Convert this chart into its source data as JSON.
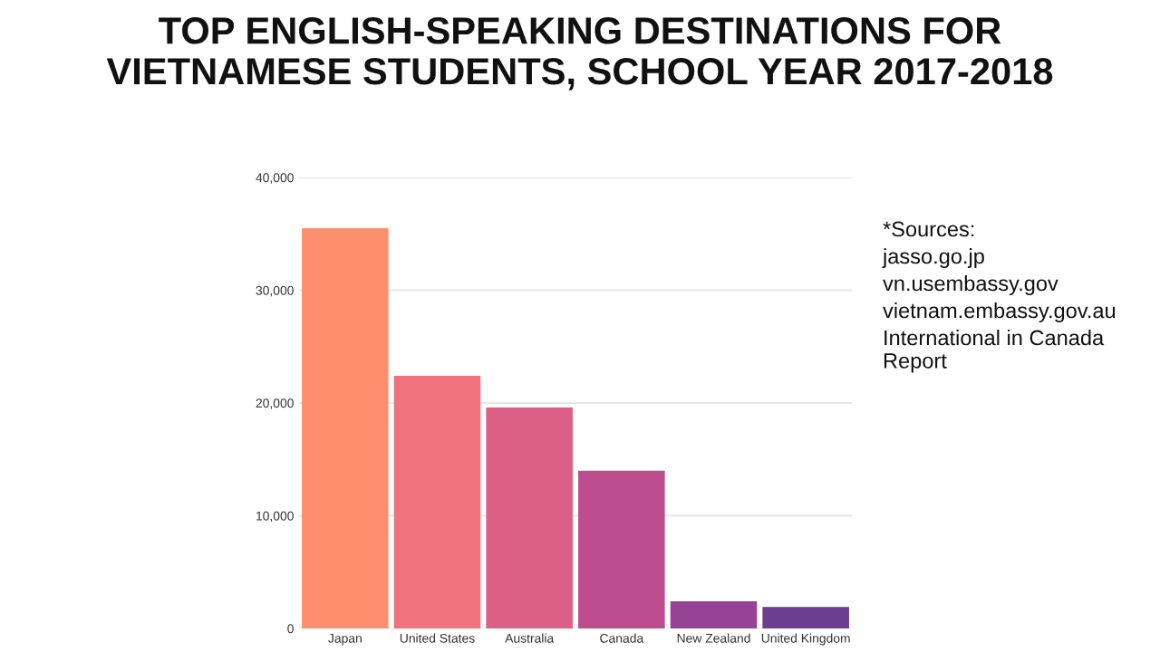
{
  "chart_data": {
    "type": "bar",
    "title": "TOP ENGLISH-SPEAKING DESTINATIONS FOR\nVIETNAMESE STUDENTS, SCHOOL YEAR 2017-2018",
    "categories": [
      "Japan",
      "United States",
      "Australia",
      "Canada",
      "New Zealand",
      "United Kingdom"
    ],
    "values": [
      35500,
      22400,
      19600,
      14000,
      2400,
      1900
    ],
    "colors": [
      "#fe8f6e",
      "#ef727c",
      "#dc5f85",
      "#bc4e8e",
      "#964396",
      "#6c3d90"
    ],
    "ylim": [
      0,
      40000
    ],
    "yticks": [
      0,
      {
        "value": 10000,
        "label": "10,000"
      },
      {
        "value": 20000,
        "label": "20,000"
      },
      {
        "value": 30000,
        "label": "30,000"
      },
      {
        "value": 40000,
        "label": "40,000"
      }
    ],
    "grid": "y",
    "annotations": [
      "*Sources:",
      "jasso.go.jp",
      "vn.usembassy.gov",
      "vietnam.embassy.gov.au",
      "International in Canada Report"
    ]
  }
}
